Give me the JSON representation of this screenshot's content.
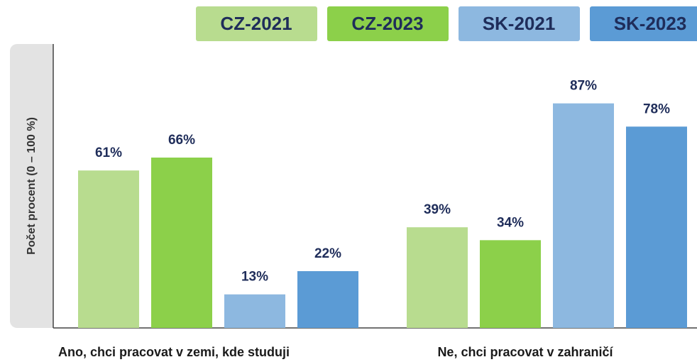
{
  "chart_data": {
    "type": "bar",
    "y_label": "Počet procent (0 – 100 %)",
    "categories": [
      "Ano, chci pracovat v zemi, kde studuji",
      "Ne, chci pracovat v zahraničí"
    ],
    "ylim": [
      0,
      110
    ],
    "series": [
      {
        "name": "CZ-2021",
        "color": "#b8dc8f",
        "values": [
          61,
          39
        ],
        "value_labels": [
          "61%",
          "39%"
        ]
      },
      {
        "name": "CZ-2023",
        "color": "#8cd04a",
        "values": [
          66,
          34
        ],
        "value_labels": [
          "66%",
          "34%"
        ]
      },
      {
        "name": "SK-2021",
        "color": "#8db8e0",
        "values": [
          13,
          87
        ],
        "value_labels": [
          "13%",
          "87%"
        ]
      },
      {
        "name": "SK-2023",
        "color": "#5b9bd5",
        "values": [
          22,
          78
        ],
        "value_labels": [
          "22%",
          "78%"
        ]
      }
    ]
  }
}
